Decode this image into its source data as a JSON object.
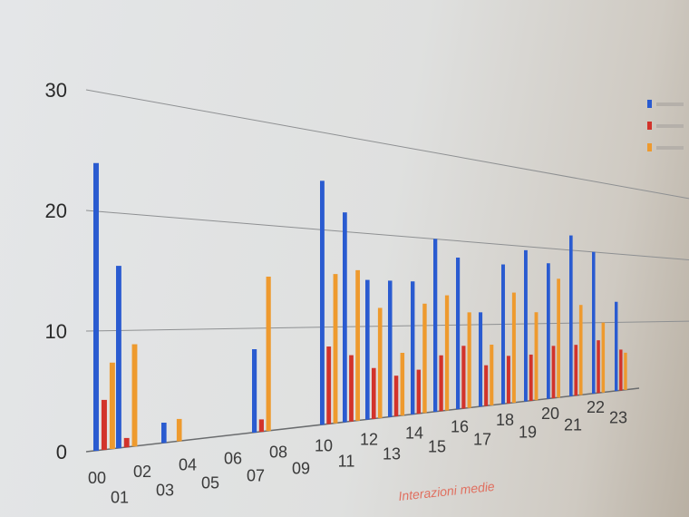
{
  "chart_data": {
    "type": "bar",
    "title": "",
    "xlabel": "Interazioni medie",
    "ylabel": "",
    "ylim": [
      0,
      30
    ],
    "yticks": [
      "0",
      "10",
      "20",
      "30"
    ],
    "grid": true,
    "legend_position": "right",
    "categories": [
      "00",
      "01",
      "02",
      "03",
      "04",
      "05",
      "06",
      "07",
      "08",
      "09",
      "10",
      "11",
      "12",
      "13",
      "14",
      "15",
      "16",
      "17",
      "18",
      "19",
      "20",
      "21",
      "22",
      "23"
    ],
    "series": [
      {
        "color": "#2a5bd0",
        "values": [
          24,
          15.5,
          0,
          1.8,
          0,
          0,
          0,
          8,
          0,
          0,
          25,
          22,
          15,
          15,
          15,
          20,
          18,
          11.5,
          17.5,
          19.5,
          18,
          22,
          20,
          13
        ]
      },
      {
        "color": "#d2332b",
        "values": [
          4.2,
          0.8,
          0,
          0,
          0,
          0,
          0,
          1.2,
          0,
          0,
          8,
          7,
          5.5,
          4.5,
          5,
          6.5,
          7.5,
          5,
          6,
          6,
          7,
          7,
          7.5,
          6
        ]
      },
      {
        "color": "#ee9a2e",
        "values": [
          7.3,
          8.8,
          0,
          2,
          0,
          0,
          0,
          15,
          0,
          0,
          15.5,
          16,
          12,
          7,
          12.5,
          13.5,
          11.5,
          7.5,
          14,
          11.5,
          16,
          12.5,
          10,
          5.5
        ]
      }
    ]
  }
}
